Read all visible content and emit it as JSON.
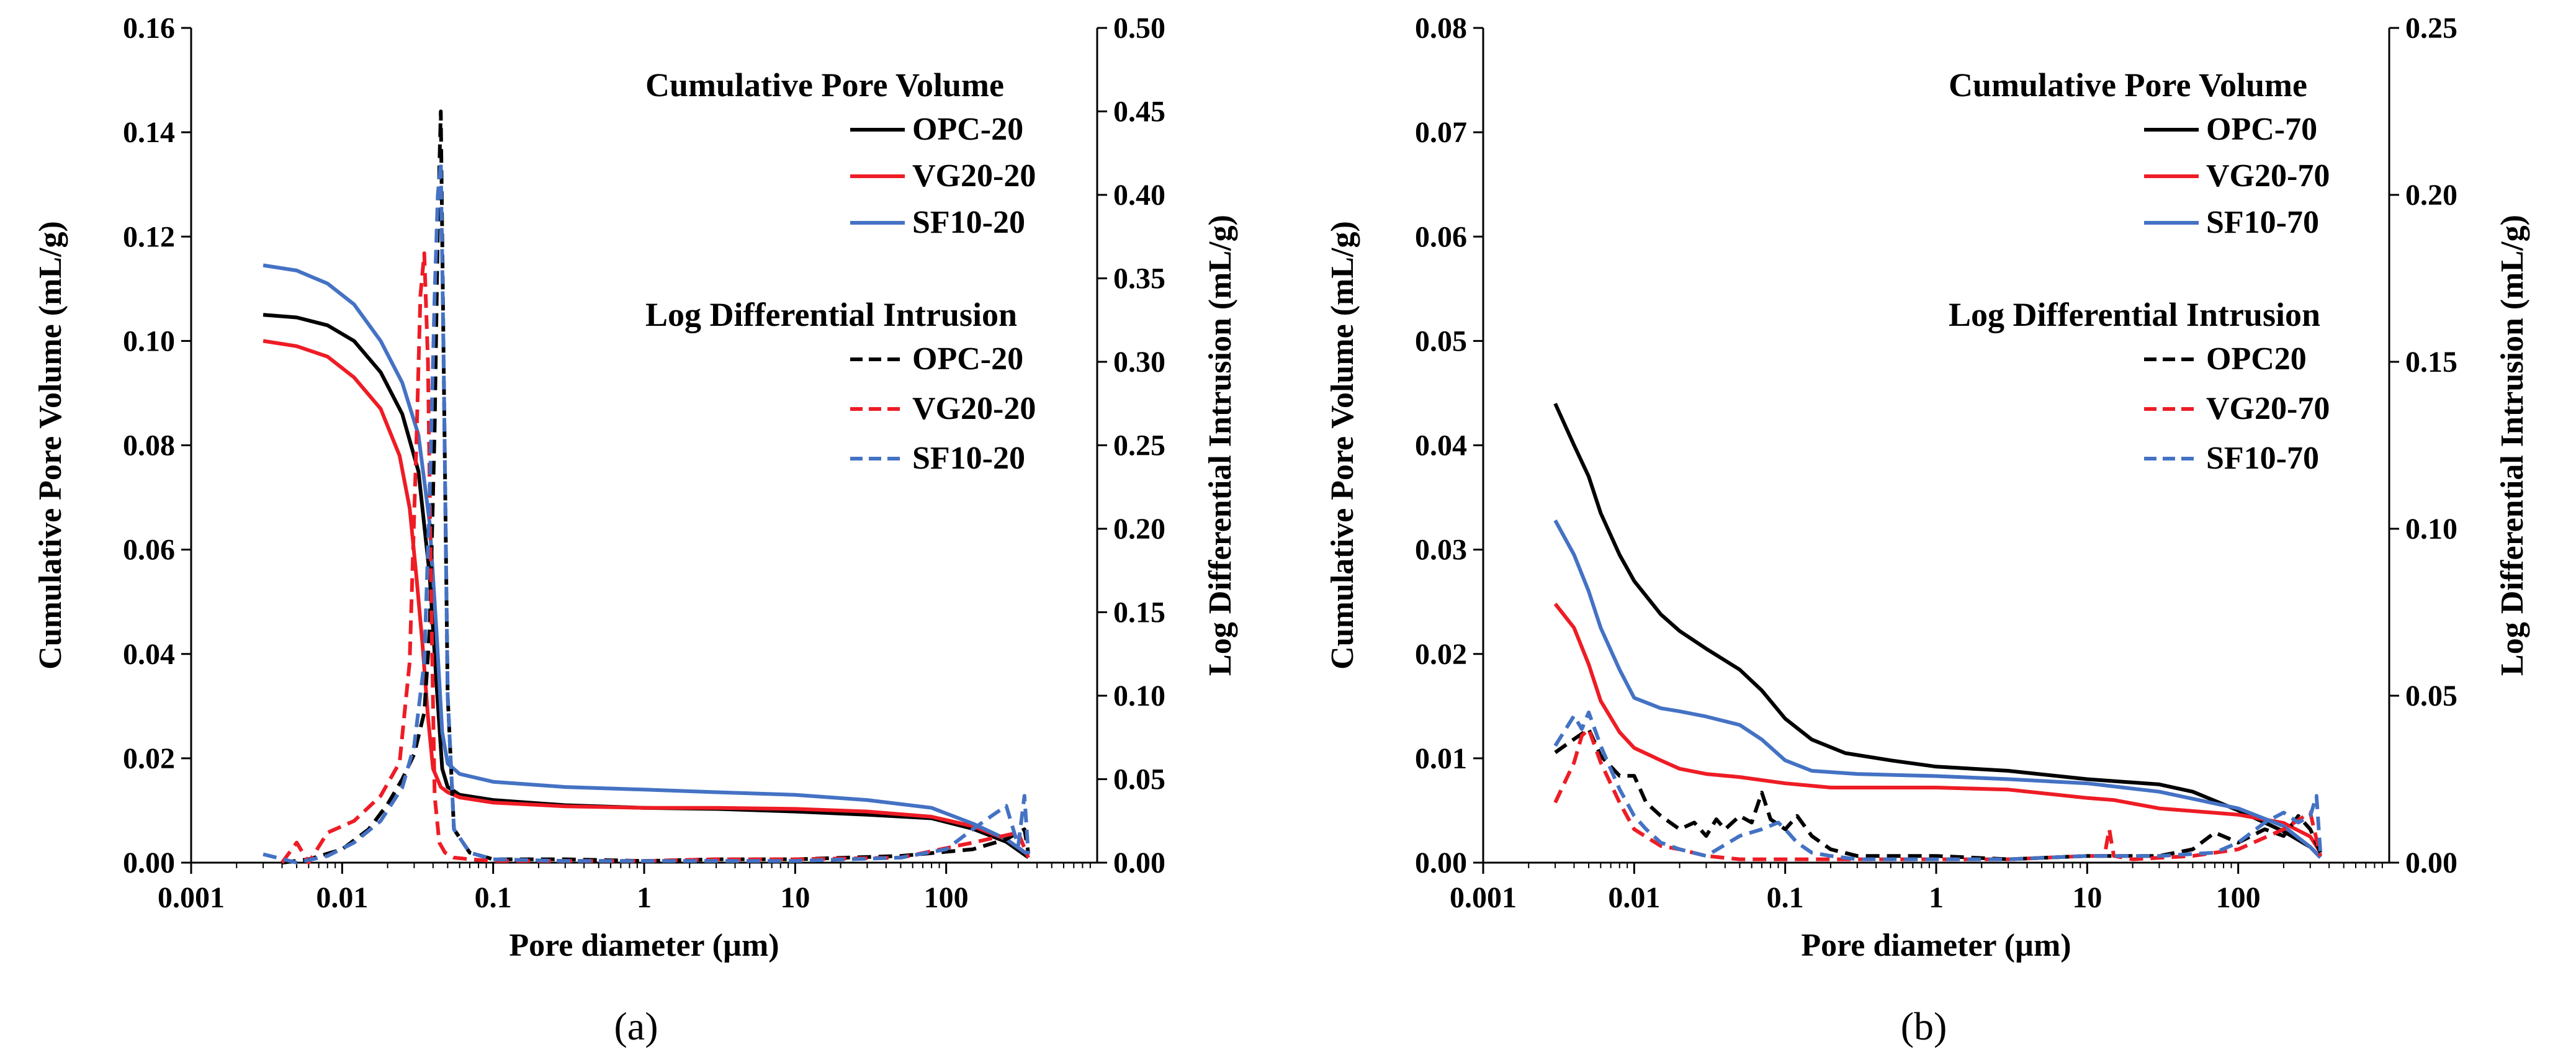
{
  "chart_data": [
    {
      "id": "a",
      "type": "line",
      "caption": "(a)",
      "xlabel": "Pore diameter (µm)",
      "ylabel": "Cumulative Pore Volume (mL/g)",
      "y2label": "Log Differential Intrusion (mL/g)",
      "xscale": "log",
      "xlim": [
        0.001,
        1000
      ],
      "ylim": [
        0,
        0.16
      ],
      "y2lim": [
        0,
        0.5
      ],
      "xticks": [
        0.001,
        0.01,
        0.1,
        1,
        10,
        100
      ],
      "xtick_labels": [
        "0.001",
        "0.01",
        "0.1",
        "1",
        "10",
        "100"
      ],
      "yticks": [
        0,
        0.02,
        0.04,
        0.06,
        0.08,
        0.1,
        0.12,
        0.14,
        0.16
      ],
      "ytick_labels": [
        "0.00",
        "0.02",
        "0.04",
        "0.06",
        "0.08",
        "0.10",
        "0.12",
        "0.14",
        "0.16"
      ],
      "y2ticks": [
        0,
        0.05,
        0.1,
        0.15,
        0.2,
        0.25,
        0.3,
        0.35,
        0.4,
        0.45,
        0.5
      ],
      "y2tick_labels": [
        "0.00",
        "0.05",
        "0.10",
        "0.15",
        "0.20",
        "0.25",
        "0.30",
        "0.35",
        "0.40",
        "0.45",
        "0.50"
      ],
      "legend_position": "top-right",
      "legend_heading_1": "Cumulative Pore Volume",
      "legend_heading_2": "Log Differential Intrusion",
      "series": [
        {
          "name": "OPC-20",
          "color": "#000000",
          "dash": "solid",
          "axis": "left",
          "x": [
            0.003,
            0.005,
            0.008,
            0.012,
            0.018,
            0.025,
            0.032,
            0.038,
            0.042,
            0.046,
            0.05,
            0.06,
            0.1,
            0.3,
            1,
            3,
            10,
            30,
            80,
            150,
            250,
            350
          ],
          "y": [
            0.105,
            0.1045,
            0.103,
            0.1,
            0.094,
            0.086,
            0.075,
            0.055,
            0.035,
            0.018,
            0.0145,
            0.013,
            0.012,
            0.011,
            0.0105,
            0.0103,
            0.0098,
            0.0092,
            0.0085,
            0.0065,
            0.004,
            0.001
          ]
        },
        {
          "name": "VG20-20",
          "color": "#ee1c25",
          "dash": "solid",
          "axis": "left",
          "x": [
            0.003,
            0.005,
            0.008,
            0.012,
            0.018,
            0.024,
            0.028,
            0.031,
            0.034,
            0.037,
            0.04,
            0.045,
            0.05,
            0.06,
            0.1,
            0.3,
            1,
            3,
            10,
            30,
            80,
            150,
            250,
            350
          ],
          "y": [
            0.1,
            0.099,
            0.097,
            0.093,
            0.087,
            0.078,
            0.068,
            0.055,
            0.042,
            0.028,
            0.018,
            0.0145,
            0.0135,
            0.0125,
            0.0115,
            0.0108,
            0.0105,
            0.0105,
            0.0103,
            0.0098,
            0.0088,
            0.007,
            0.0045,
            0.0015
          ]
        },
        {
          "name": "SF10-20",
          "color": "#4472c4",
          "dash": "solid",
          "axis": "left",
          "x": [
            0.003,
            0.005,
            0.008,
            0.012,
            0.018,
            0.025,
            0.032,
            0.038,
            0.042,
            0.046,
            0.05,
            0.06,
            0.1,
            0.3,
            1,
            3,
            10,
            30,
            80,
            150,
            250,
            350
          ],
          "y": [
            0.1145,
            0.1135,
            0.111,
            0.107,
            0.1,
            0.092,
            0.082,
            0.065,
            0.045,
            0.025,
            0.019,
            0.017,
            0.0155,
            0.0145,
            0.014,
            0.0135,
            0.013,
            0.012,
            0.0105,
            0.0075,
            0.0045,
            0.0015
          ]
        },
        {
          "name": "OPC-20",
          "color": "#000000",
          "dash": "dashed",
          "axis": "right",
          "x": [
            0.004,
            0.006,
            0.01,
            0.015,
            0.02,
            0.025,
            0.03,
            0.035,
            0.038,
            0.041,
            0.043,
            0.045,
            0.047,
            0.05,
            0.055,
            0.07,
            0.1,
            0.3,
            1,
            3,
            10,
            50,
            150,
            250,
            330,
            350
          ],
          "y": [
            0.0,
            0.002,
            0.008,
            0.02,
            0.035,
            0.05,
            0.065,
            0.09,
            0.14,
            0.26,
            0.38,
            0.45,
            0.3,
            0.1,
            0.02,
            0.006,
            0.002,
            0.002,
            0.001,
            0.002,
            0.002,
            0.004,
            0.008,
            0.014,
            0.02,
            0.006
          ]
        },
        {
          "name": "VG20-20",
          "color": "#ee1c25",
          "dash": "dashed",
          "axis": "right",
          "x": [
            0.004,
            0.005,
            0.006,
            0.008,
            0.012,
            0.018,
            0.024,
            0.028,
            0.031,
            0.033,
            0.035,
            0.037,
            0.039,
            0.041,
            0.044,
            0.048,
            0.055,
            0.07,
            0.1,
            0.3,
            1,
            3,
            10,
            50,
            150,
            300,
            350
          ],
          "y": [
            0.0,
            0.012,
            0.0,
            0.018,
            0.025,
            0.04,
            0.06,
            0.12,
            0.25,
            0.34,
            0.365,
            0.3,
            0.15,
            0.04,
            0.012,
            0.006,
            0.003,
            0.002,
            0.001,
            0.001,
            0.001,
            0.002,
            0.002,
            0.003,
            0.012,
            0.018,
            0.003
          ]
        },
        {
          "name": "SF10-20",
          "color": "#4472c4",
          "dash": "dashed",
          "axis": "right",
          "x": [
            0.003,
            0.005,
            0.008,
            0.012,
            0.018,
            0.025,
            0.03,
            0.035,
            0.038,
            0.041,
            0.043,
            0.045,
            0.047,
            0.05,
            0.055,
            0.07,
            0.1,
            0.3,
            1,
            3,
            10,
            50,
            100,
            150,
            200,
            250,
            300,
            330,
            350
          ],
          "y": [
            0.005,
            0.0,
            0.004,
            0.012,
            0.025,
            0.045,
            0.07,
            0.12,
            0.22,
            0.34,
            0.4,
            0.42,
            0.3,
            0.1,
            0.02,
            0.006,
            0.002,
            0.001,
            0.001,
            0.001,
            0.001,
            0.003,
            0.008,
            0.02,
            0.028,
            0.034,
            0.01,
            0.04,
            0.005
          ]
        }
      ]
    },
    {
      "id": "b",
      "type": "line",
      "caption": "(b)",
      "xlabel": "Pore diameter (µm)",
      "ylabel": "Cumulative Pore Volume (mL/g)",
      "y2label": "Log Differential Intrusion (mL/g)",
      "xscale": "log",
      "xlim": [
        0.001,
        1000
      ],
      "ylim": [
        0,
        0.08
      ],
      "y2lim": [
        0,
        0.25
      ],
      "xticks": [
        0.001,
        0.01,
        0.1,
        1,
        10,
        100
      ],
      "xtick_labels": [
        "0.001",
        "0.01",
        "0.1",
        "1",
        "10",
        "100"
      ],
      "yticks": [
        0,
        0.01,
        0.02,
        0.03,
        0.04,
        0.05,
        0.06,
        0.07,
        0.08
      ],
      "ytick_labels": [
        "0.00",
        "0.01",
        "0.02",
        "0.03",
        "0.04",
        "0.05",
        "0.06",
        "0.07",
        "0.08"
      ],
      "y2ticks": [
        0,
        0.05,
        0.1,
        0.15,
        0.2,
        0.25
      ],
      "y2tick_labels": [
        "0.00",
        "0.05",
        "0.10",
        "0.15",
        "0.20",
        "0.25"
      ],
      "legend_position": "top-right",
      "legend_heading_1": "Cumulative Pore Volume",
      "legend_heading_2": "Log Differential Intrusion",
      "series": [
        {
          "name": "OPC-70",
          "color": "#000000",
          "dash": "solid",
          "axis": "left",
          "x": [
            0.003,
            0.004,
            0.005,
            0.006,
            0.008,
            0.01,
            0.015,
            0.02,
            0.03,
            0.05,
            0.07,
            0.1,
            0.15,
            0.25,
            0.5,
            1,
            3,
            10,
            30,
            50,
            100,
            200,
            300,
            350
          ],
          "y": [
            0.044,
            0.04,
            0.037,
            0.0335,
            0.0295,
            0.027,
            0.0238,
            0.0222,
            0.0205,
            0.0185,
            0.0165,
            0.0138,
            0.0118,
            0.0105,
            0.0098,
            0.0092,
            0.0088,
            0.008,
            0.0075,
            0.0068,
            0.005,
            0.003,
            0.0015,
            0.0005
          ]
        },
        {
          "name": "VG20-70",
          "color": "#ee1c25",
          "dash": "solid",
          "axis": "left",
          "x": [
            0.003,
            0.004,
            0.005,
            0.006,
            0.008,
            0.01,
            0.015,
            0.02,
            0.03,
            0.05,
            0.1,
            0.2,
            1,
            3,
            10,
            15,
            30,
            100,
            200,
            300,
            350
          ],
          "y": [
            0.0248,
            0.0225,
            0.019,
            0.0155,
            0.0125,
            0.011,
            0.0098,
            0.009,
            0.0085,
            0.0082,
            0.0076,
            0.0072,
            0.0072,
            0.007,
            0.0062,
            0.006,
            0.0052,
            0.0046,
            0.0038,
            0.0025,
            0.001
          ]
        },
        {
          "name": "SF10-70",
          "color": "#4472c4",
          "dash": "solid",
          "axis": "left",
          "x": [
            0.003,
            0.004,
            0.005,
            0.006,
            0.008,
            0.01,
            0.015,
            0.02,
            0.03,
            0.05,
            0.07,
            0.1,
            0.15,
            0.3,
            1,
            3,
            10,
            30,
            100,
            200,
            300,
            350
          ],
          "y": [
            0.0328,
            0.0295,
            0.026,
            0.0225,
            0.0185,
            0.0158,
            0.0148,
            0.0145,
            0.014,
            0.0132,
            0.0118,
            0.0098,
            0.0088,
            0.0085,
            0.0083,
            0.008,
            0.0076,
            0.0068,
            0.0052,
            0.0035,
            0.0015,
            0.0005
          ]
        },
        {
          "name": "OPC20",
          "color": "#000000",
          "dash": "dashed",
          "axis": "right",
          "x": [
            0.003,
            0.004,
            0.005,
            0.006,
            0.008,
            0.01,
            0.012,
            0.015,
            0.02,
            0.025,
            0.03,
            0.035,
            0.04,
            0.05,
            0.06,
            0.07,
            0.08,
            0.1,
            0.12,
            0.15,
            0.2,
            0.3,
            1,
            3,
            10,
            30,
            50,
            70,
            100,
            150,
            200,
            250,
            300,
            350
          ],
          "y": [
            0.033,
            0.037,
            0.04,
            0.032,
            0.026,
            0.026,
            0.018,
            0.014,
            0.01,
            0.012,
            0.008,
            0.013,
            0.01,
            0.014,
            0.012,
            0.021,
            0.013,
            0.01,
            0.014,
            0.008,
            0.004,
            0.002,
            0.002,
            0.001,
            0.002,
            0.002,
            0.004,
            0.009,
            0.006,
            0.01,
            0.008,
            0.014,
            0.01,
            0.003
          ]
        },
        {
          "name": "VG20-70",
          "color": "#ee1c25",
          "dash": "dashed",
          "axis": "right",
          "x": [
            0.003,
            0.004,
            0.0045,
            0.005,
            0.006,
            0.008,
            0.01,
            0.015,
            0.02,
            0.03,
            0.05,
            0.1,
            0.2,
            1,
            3,
            10,
            13,
            14,
            15,
            20,
            50,
            100,
            200,
            300,
            350
          ],
          "y": [
            0.018,
            0.03,
            0.038,
            0.04,
            0.03,
            0.018,
            0.01,
            0.005,
            0.004,
            0.002,
            0.001,
            0.001,
            0.001,
            0.001,
            0.001,
            0.002,
            0.002,
            0.01,
            0.002,
            0.001,
            0.002,
            0.004,
            0.01,
            0.015,
            0.002
          ]
        },
        {
          "name": "SF10-70",
          "color": "#4472c4",
          "dash": "dashed",
          "axis": "right",
          "x": [
            0.003,
            0.004,
            0.0045,
            0.005,
            0.006,
            0.007,
            0.008,
            0.01,
            0.012,
            0.015,
            0.02,
            0.03,
            0.05,
            0.07,
            0.09,
            0.1,
            0.12,
            0.15,
            0.2,
            0.3,
            1,
            3,
            10,
            30,
            70,
            100,
            150,
            200,
            250,
            300,
            330,
            350
          ],
          "y": [
            0.035,
            0.044,
            0.04,
            0.045,
            0.035,
            0.028,
            0.022,
            0.014,
            0.01,
            0.006,
            0.004,
            0.002,
            0.008,
            0.01,
            0.012,
            0.01,
            0.006,
            0.003,
            0.002,
            0.001,
            0.001,
            0.001,
            0.002,
            0.002,
            0.003,
            0.006,
            0.012,
            0.015,
            0.012,
            0.014,
            0.02,
            0.003
          ]
        }
      ]
    }
  ]
}
